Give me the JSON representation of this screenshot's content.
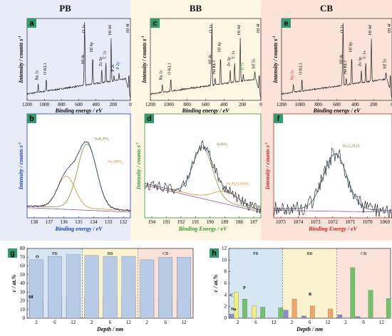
{
  "columns": [
    {
      "title": "PB",
      "bg": "#e8ecf6"
    },
    {
      "title": "BB",
      "bg": "#fdf6e3"
    },
    {
      "title": "CB",
      "bg": "#fbe3d9"
    }
  ],
  "survey_panels": [
    {
      "label": "a",
      "peaks": [
        {
          "text": "O KL1",
          "color": "#000"
        },
        {
          "text": "Na 1s",
          "color": "#000"
        },
        {
          "text": "Hf 4s",
          "color": "#000"
        },
        {
          "text": "O 1s",
          "color": "#000"
        },
        {
          "text": "Hf 4p",
          "color": "#000"
        },
        {
          "text": "Zr 3p",
          "color": "#000"
        },
        {
          "text": "C 1s",
          "color": "#000"
        },
        {
          "text": "Hf 4d",
          "color": "#000"
        },
        {
          "text": "P 2s",
          "color": "#000"
        },
        {
          "text": "P 2p",
          "color": "#1a3fc0"
        },
        {
          "text": "Hf 4f",
          "color": "#000"
        }
      ]
    },
    {
      "label": "c",
      "peaks": [
        {
          "text": "Na 1s",
          "color": "#000"
        },
        {
          "text": "O KL1",
          "color": "#000"
        },
        {
          "text": "Hf 4s",
          "color": "#000"
        },
        {
          "text": "O 1s",
          "color": "#000"
        },
        {
          "text": "Hf 4p",
          "color": "#000"
        },
        {
          "text": "Na KL1",
          "color": "#000"
        },
        {
          "text": "Zr 3p",
          "color": "#000"
        },
        {
          "text": "C 1s",
          "color": "#000"
        },
        {
          "text": "Hf 4d",
          "color": "#000"
        },
        {
          "text": "B 1s",
          "color": "#2f9a2f"
        },
        {
          "text": "Hf 5s",
          "color": "#000"
        },
        {
          "text": "Hf 4f",
          "color": "#000"
        }
      ]
    },
    {
      "label": "e",
      "peaks": [
        {
          "text": "Na 1s",
          "color": "#e0201a"
        },
        {
          "text": "O KL1",
          "color": "#000"
        },
        {
          "text": "Hf 4s",
          "color": "#000"
        },
        {
          "text": "O 1s",
          "color": "#000"
        },
        {
          "text": "Hf 4p",
          "color": "#000"
        },
        {
          "text": "Na KL1",
          "color": "#000"
        },
        {
          "text": "Zr 3p",
          "color": "#000"
        },
        {
          "text": "C 1s",
          "color": "#000"
        },
        {
          "text": "Hf 4d",
          "color": "#000"
        },
        {
          "text": "Hf 5s",
          "color": "#000"
        },
        {
          "text": "Hf 4f",
          "color": "#000"
        }
      ]
    }
  ],
  "survey_axis": {
    "ylabel": "Intensity / counts s",
    "ylabel_sup": "-1",
    "xlabel": "Binding energy / eV",
    "ticks": [
      "1200",
      "1000",
      "800",
      "600",
      "400",
      "200",
      "0"
    ]
  },
  "hr_panels": [
    {
      "label": "b",
      "ylabel_color": "#1a3fc0",
      "xlabel": "Binding energy / eV",
      "xlabel_color": "#1a3fc0",
      "ticks": [
        "138",
        "137",
        "136",
        "135",
        "134",
        "133",
        "132"
      ],
      "components": [
        {
          "text": "NaH₂PO₄",
          "color": "#6f8f2a"
        },
        {
          "text": "Na₂HPO₄",
          "color": "#e08a1a"
        }
      ]
    },
    {
      "label": "d",
      "ylabel_color": "#2f9a2f",
      "xlabel": "Binding Energy / eV",
      "xlabel_color": "#2f9a2f",
      "ticks": [
        "194",
        "193",
        "192",
        "191",
        "190",
        "189",
        "188",
        "187"
      ],
      "components": [
        {
          "text": "H₃BO₃",
          "color": "#6f8f2a"
        },
        {
          "text": "Na₂B₄O₅(OH)₄",
          "color": "#e08a1a"
        }
      ]
    },
    {
      "label": "f",
      "ylabel_color": "#e0201a",
      "xlabel": "Binding Energy / eV",
      "xlabel_color": "#e0201a",
      "ticks": [
        "1075",
        "1074",
        "1073",
        "1072",
        "1071",
        "1070",
        "1069"
      ],
      "components": [
        {
          "text": "Na₃C₆H₅O₇",
          "color": "#6f8f2a"
        }
      ]
    }
  ],
  "hr_ylabel": {
    "text": "Intensity / counts s",
    "sup": "-1"
  },
  "chart_data": [
    {
      "panel": "g",
      "type": "bar",
      "xlabel": "Depth / nm",
      "ylabel": "c / at.%",
      "ylim": [
        0,
        80
      ],
      "yticks": [
        "0",
        "10",
        "20",
        "30",
        "40",
        "50",
        "60",
        "70",
        "80"
      ],
      "groups": [
        "PB",
        "BB",
        "CB"
      ],
      "categories": [
        "2",
        "6",
        "12"
      ],
      "series": [
        {
          "name": "Hf",
          "color": "#f0575a",
          "values": [
            [
              21,
              23,
              24
            ],
            [
              23,
              25,
              26
            ],
            [
              23,
              24,
              24
            ]
          ]
        },
        {
          "name": "O",
          "color": "#b7cbe6",
          "values": [
            [
              67,
              71,
              73
            ],
            [
              72,
              71,
              71
            ],
            [
              67,
              70,
              70
            ]
          ]
        }
      ]
    },
    {
      "panel": "h",
      "type": "bar",
      "xlabel": "Depth / nm",
      "ylabel": "c / at.%",
      "ylim": [
        0,
        12
      ],
      "yticks": [
        "0",
        "2",
        "4",
        "6",
        "8",
        "10",
        "12"
      ],
      "groups": [
        "PB",
        "BB",
        "CB"
      ],
      "categories": [
        "2",
        "6",
        "12"
      ],
      "series": [
        {
          "name": "Na",
          "color": "#8a8ad0",
          "values": [
            [
              0.7,
              0,
              0
            ],
            [
              1.4,
              0.4,
              0
            ],
            [
              0.6,
              0.3,
              0
            ]
          ]
        },
        {
          "name": "P",
          "color": "#f2f07a",
          "values": [
            [
              4.5,
              2.1,
              0
            ],
            [
              0,
              0,
              0
            ],
            [
              0,
              0,
              0
            ]
          ]
        },
        {
          "name": "B",
          "color": "#f2a46b",
          "values": [
            [
              0,
              0,
              0
            ],
            [
              3.3,
              2.1,
              1.6
            ],
            [
              0,
              0,
              0
            ]
          ]
        },
        {
          "name": "C",
          "color": "#71c36b",
          "values": [
            [
              3.3,
              1.9,
              1.8
            ],
            [
              0,
              0,
              0
            ],
            [
              8.7,
              4.8,
              3.4
            ]
          ]
        }
      ]
    }
  ]
}
